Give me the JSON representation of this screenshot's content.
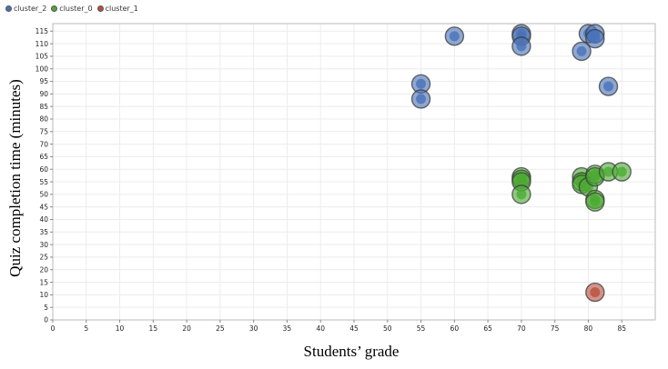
{
  "legend": [
    {
      "name": "cluster_2",
      "color": "#4a72b8"
    },
    {
      "name": "cluster_0",
      "color": "#4caa34"
    },
    {
      "name": "cluster_1",
      "color": "#b85040"
    }
  ],
  "chart_data": {
    "type": "scatter",
    "xlabel": "Students’ grade",
    "ylabel": "Quiz completion time (minutes)",
    "xlim": [
      0,
      90
    ],
    "ylim": [
      0,
      118
    ],
    "xticks": [
      0,
      5,
      10,
      15,
      20,
      25,
      30,
      35,
      40,
      45,
      50,
      55,
      60,
      65,
      70,
      75,
      80,
      85
    ],
    "yticks": [
      0,
      5,
      10,
      15,
      20,
      25,
      30,
      35,
      40,
      45,
      50,
      55,
      60,
      65,
      70,
      75,
      80,
      85,
      90,
      95,
      100,
      105,
      110,
      115
    ],
    "grid": true,
    "legend_position": "top-left",
    "series": [
      {
        "name": "cluster_2",
        "color": "#4a72b8",
        "points": [
          {
            "x": 60,
            "y": 113
          },
          {
            "x": 70,
            "y": 114
          },
          {
            "x": 70,
            "y": 113
          },
          {
            "x": 70,
            "y": 109
          },
          {
            "x": 80,
            "y": 114
          },
          {
            "x": 81,
            "y": 114
          },
          {
            "x": 81,
            "y": 112
          },
          {
            "x": 79,
            "y": 107
          },
          {
            "x": 55,
            "y": 94
          },
          {
            "x": 55,
            "y": 88
          },
          {
            "x": 83,
            "y": 93
          }
        ]
      },
      {
        "name": "cluster_0",
        "color": "#4caa34",
        "points": [
          {
            "x": 70,
            "y": 57
          },
          {
            "x": 70,
            "y": 56
          },
          {
            "x": 70,
            "y": 55
          },
          {
            "x": 70,
            "y": 50
          },
          {
            "x": 79,
            "y": 57
          },
          {
            "x": 79,
            "y": 55
          },
          {
            "x": 79,
            "y": 54
          },
          {
            "x": 80,
            "y": 53
          },
          {
            "x": 81,
            "y": 58
          },
          {
            "x": 81,
            "y": 57
          },
          {
            "x": 81,
            "y": 48
          },
          {
            "x": 81,
            "y": 47
          },
          {
            "x": 83,
            "y": 59
          },
          {
            "x": 85,
            "y": 59
          }
        ]
      },
      {
        "name": "cluster_1",
        "color": "#b85040",
        "points": [
          {
            "x": 81,
            "y": 11
          }
        ]
      }
    ]
  }
}
